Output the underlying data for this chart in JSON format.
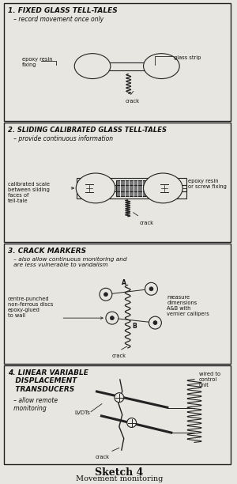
{
  "bg_color": "#e8e6e0",
  "panel_bg": "#e8e6e0",
  "border_color": "#222222",
  "title": "Sketch 4",
  "subtitle": "Movement monitoring",
  "panel1_title": "1. FIXED GLASS TELL-TALES",
  "panel1_sub": "   – record movement once only",
  "panel2_title": "2. SLIDING CALIBRATED GLASS TELL-TALES",
  "panel2_sub": "   – provide continuous information",
  "panel3_title": "3. CRACK MARKERS",
  "panel3_sub": "   – also allow continuous monitoring and\n   are less vulnerable to vandalism",
  "panel4_title": "4. LINEAR VARIABLE\n   DISPLACEMENT\n   TRANSDUCERS",
  "panel4_sub": "   – allow remote\n   monitoring"
}
